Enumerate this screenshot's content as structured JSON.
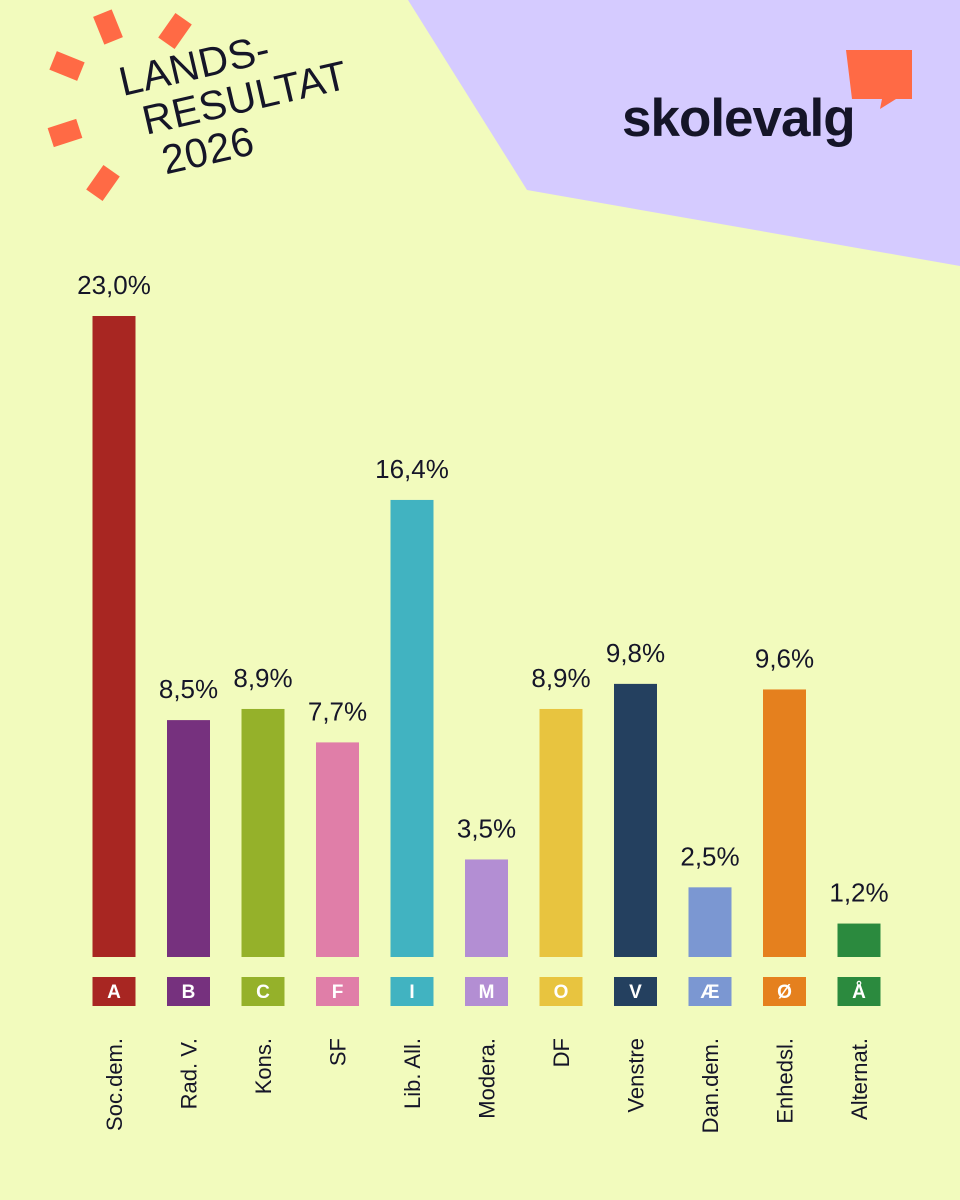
{
  "title": {
    "line1": "LANDS-",
    "line2": "RESULTAT",
    "line3": "2026"
  },
  "logo": {
    "text": "skolevalg"
  },
  "colors": {
    "background": "#f2fbbd",
    "corner": "#d5cbff",
    "accent": "#ff6a45",
    "text": "#151528"
  },
  "chart_data": {
    "type": "bar",
    "categories": [
      "Soc.dem.",
      "Rad. V.",
      "Kons.",
      "SF",
      "Lib. All.",
      "Modera.",
      "DF",
      "Venstre",
      "Dan.dem.",
      "Enhedsl.",
      "Alternat."
    ],
    "letters": [
      "A",
      "B",
      "C",
      "F",
      "I",
      "M",
      "O",
      "V",
      "Æ",
      "Ø",
      "Å"
    ],
    "values": [
      23.0,
      8.5,
      8.9,
      7.7,
      16.4,
      3.5,
      8.9,
      9.8,
      2.5,
      9.6,
      1.2
    ],
    "value_labels": [
      "23,0%",
      "8,5%",
      "8,9%",
      "7,7%",
      "16,4%",
      "3,5%",
      "8,9%",
      "9,8%",
      "2,5%",
      "9,6%",
      "1,2%"
    ],
    "colors": [
      "#a82622",
      "#76317e",
      "#95b12a",
      "#e07ea8",
      "#41b3c1",
      "#b38ed3",
      "#e8c43f",
      "#24405f",
      "#7b97d2",
      "#e5801e",
      "#2b8a3e"
    ],
    "ylim": [
      0,
      23.0
    ],
    "grid": false,
    "legend": "none"
  }
}
